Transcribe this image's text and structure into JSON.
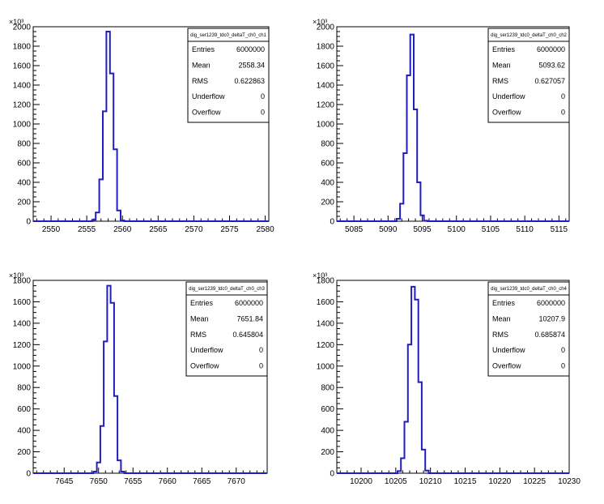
{
  "chart_data": [
    {
      "type": "bar",
      "stats_title": "dig_ser1239_tdc0_deltaT_ch0_ch1",
      "stats": [
        {
          "label": "Entries",
          "value": "6000000"
        },
        {
          "label": "Mean",
          "value": "2558.34"
        },
        {
          "label": "RMS",
          "value": "0.622863"
        },
        {
          "label": "Underflow",
          "value": "0"
        },
        {
          "label": "Overflow",
          "value": "0"
        }
      ],
      "y_exponent": "×10³",
      "xlim": [
        2547.5,
        2580.5
      ],
      "ylim": [
        0,
        2000
      ],
      "x_ticks": [
        2550,
        2555,
        2560,
        2565,
        2570,
        2575,
        2580
      ],
      "x_tick_labels": [
        "2550",
        "2555",
        "2560",
        "2565",
        "2570",
        "2575",
        "2580"
      ],
      "y_ticks": [
        0,
        200,
        400,
        600,
        800,
        1000,
        1200,
        1400,
        1600,
        1800,
        2000
      ],
      "y_tick_labels": [
        "0",
        "200",
        "400",
        "600",
        "800",
        "1000",
        "1200",
        "1400",
        "1600",
        "1800",
        "2000"
      ],
      "x": [
        2556.0,
        2556.5,
        2557.0,
        2557.5,
        2558.0,
        2558.5,
        2559.0,
        2559.5,
        2560.0
      ],
      "values": [
        15,
        90,
        430,
        1130,
        1950,
        1520,
        740,
        110,
        8
      ],
      "bin_width": 0.5
    },
    {
      "type": "bar",
      "stats_title": "dig_ser1239_tdc0_deltaT_ch0_ch2",
      "stats": [
        {
          "label": "Entries",
          "value": "6000000"
        },
        {
          "label": "Mean",
          "value": "5093.62"
        },
        {
          "label": "RMS",
          "value": "0.627057"
        },
        {
          "label": "Underflow",
          "value": "0"
        },
        {
          "label": "Overflow",
          "value": "0"
        }
      ],
      "y_exponent": "×10³",
      "xlim": [
        5082.5,
        5116.5
      ],
      "ylim": [
        0,
        2000
      ],
      "x_ticks": [
        5085,
        5090,
        5095,
        5100,
        5105,
        5110,
        5115
      ],
      "x_tick_labels": [
        "5085",
        "5090",
        "5095",
        "5100",
        "5105",
        "5110",
        "5115"
      ],
      "y_ticks": [
        0,
        200,
        400,
        600,
        800,
        1000,
        1200,
        1400,
        1600,
        1800,
        2000
      ],
      "y_tick_labels": [
        "0",
        "200",
        "400",
        "600",
        "800",
        "1000",
        "1200",
        "1400",
        "1600",
        "1800",
        "2000"
      ],
      "x": [
        5091.5,
        5092.0,
        5092.5,
        5093.0,
        5093.5,
        5094.0,
        5094.5,
        5095.0,
        5095.5
      ],
      "values": [
        25,
        180,
        700,
        1500,
        1920,
        1150,
        400,
        60,
        5
      ],
      "bin_width": 0.5
    },
    {
      "type": "bar",
      "stats_title": "dig_ser1239_tdc0_deltaT_ch0_ch3",
      "stats": [
        {
          "label": "Entries",
          "value": "6000000"
        },
        {
          "label": "Mean",
          "value": "7651.84"
        },
        {
          "label": "RMS",
          "value": "0.645804"
        },
        {
          "label": "Underflow",
          "value": "0"
        },
        {
          "label": "Overflow",
          "value": "0"
        }
      ],
      "y_exponent": "×10³",
      "xlim": [
        7640.5,
        7674.5
      ],
      "ylim": [
        0,
        1800
      ],
      "x_ticks": [
        7645,
        7650,
        7655,
        7660,
        7665,
        7670
      ],
      "x_tick_labels": [
        "7645",
        "7650",
        "7655",
        "7660",
        "7665",
        "7670"
      ],
      "y_ticks": [
        0,
        200,
        400,
        600,
        800,
        1000,
        1200,
        1400,
        1600,
        1800
      ],
      "y_tick_labels": [
        "0",
        "200",
        "400",
        "600",
        "800",
        "1000",
        "1200",
        "1400",
        "1600",
        "1800"
      ],
      "x": [
        7649.5,
        7650.0,
        7650.5,
        7651.0,
        7651.5,
        7652.0,
        7652.5,
        7653.0,
        7653.5
      ],
      "values": [
        15,
        100,
        440,
        1230,
        1750,
        1590,
        720,
        120,
        15
      ],
      "bin_width": 0.5
    },
    {
      "type": "bar",
      "stats_title": "dig_ser1239_tdc0_deltaT_ch0_ch4",
      "stats": [
        {
          "label": "Entries",
          "value": "6000000"
        },
        {
          "label": "Mean",
          "value": "10207.9"
        },
        {
          "label": "RMS",
          "value": "0.685874"
        },
        {
          "label": "Underflow",
          "value": "0"
        },
        {
          "label": "Overflow",
          "value": "0"
        }
      ],
      "y_exponent": "×10³",
      "xlim": [
        10196.5,
        10230
      ],
      "ylim": [
        0,
        1800
      ],
      "x_ticks": [
        10200,
        10205,
        10210,
        10215,
        10220,
        10225,
        10230
      ],
      "x_tick_labels": [
        "10200",
        "10205",
        "10210",
        "10215",
        "10220",
        "10225",
        "10230"
      ],
      "y_ticks": [
        0,
        200,
        400,
        600,
        800,
        1000,
        1200,
        1400,
        1600,
        1800
      ],
      "y_tick_labels": [
        "0",
        "200",
        "400",
        "600",
        "800",
        "1000",
        "1200",
        "1400",
        "1600",
        "1800"
      ],
      "x": [
        10205.5,
        10206.0,
        10206.5,
        10207.0,
        10207.5,
        10208.0,
        10208.5,
        10209.0,
        10209.5
      ],
      "values": [
        20,
        140,
        480,
        1200,
        1740,
        1620,
        850,
        220,
        25
      ],
      "bin_width": 0.5
    }
  ],
  "colors": {
    "histogram_line": "#1f1fbf",
    "axis": "#000000",
    "stats_border": "#000000"
  }
}
